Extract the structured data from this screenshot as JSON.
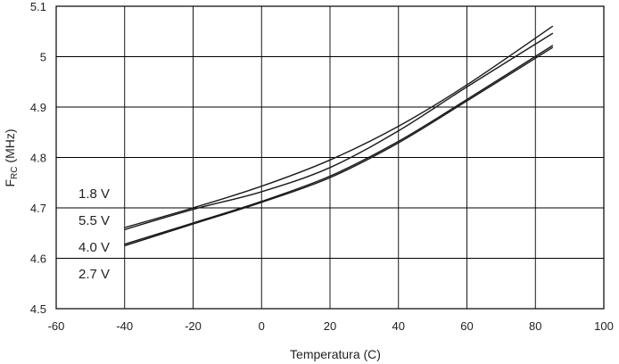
{
  "chart_data": {
    "type": "line",
    "xlabel": "Temperatura (C)",
    "ylabel": {
      "main": "F",
      "sub": "RC",
      "unit": " (MHz)"
    },
    "xlim": [
      -60,
      100
    ],
    "ylim": [
      4.5,
      5.1
    ],
    "xticks": [
      -60,
      -40,
      -20,
      0,
      20,
      40,
      60,
      80,
      100
    ],
    "yticks": [
      4.5,
      4.6,
      4.7,
      4.8,
      4.9,
      5,
      5.1
    ],
    "grid": true,
    "legend_labels": [
      "1.8 V",
      "5.5 V",
      "4.0 V",
      "2.7 V"
    ],
    "series": [
      {
        "name": "1.8 V",
        "x": [
          -40,
          -20,
          0,
          20,
          40,
          60,
          85
        ],
        "y": [
          4.661,
          4.7,
          4.743,
          4.795,
          4.862,
          4.944,
          5.06
        ]
      },
      {
        "name": "5.5 V",
        "x": [
          -40,
          -20,
          0,
          20,
          40,
          60,
          85
        ],
        "y": [
          4.657,
          4.697,
          4.732,
          4.78,
          4.853,
          4.94,
          5.046
        ]
      },
      {
        "name": "4.0 V",
        "x": [
          -40,
          -20,
          0,
          20,
          40,
          60,
          85
        ],
        "y": [
          4.628,
          4.67,
          4.713,
          4.763,
          4.832,
          4.915,
          5.022
        ]
      },
      {
        "name": "2.7 V",
        "x": [
          -40,
          -20,
          0,
          20,
          40,
          60,
          85
        ],
        "y": [
          4.625,
          4.668,
          4.711,
          4.76,
          4.829,
          4.912,
          5.018
        ]
      }
    ]
  }
}
